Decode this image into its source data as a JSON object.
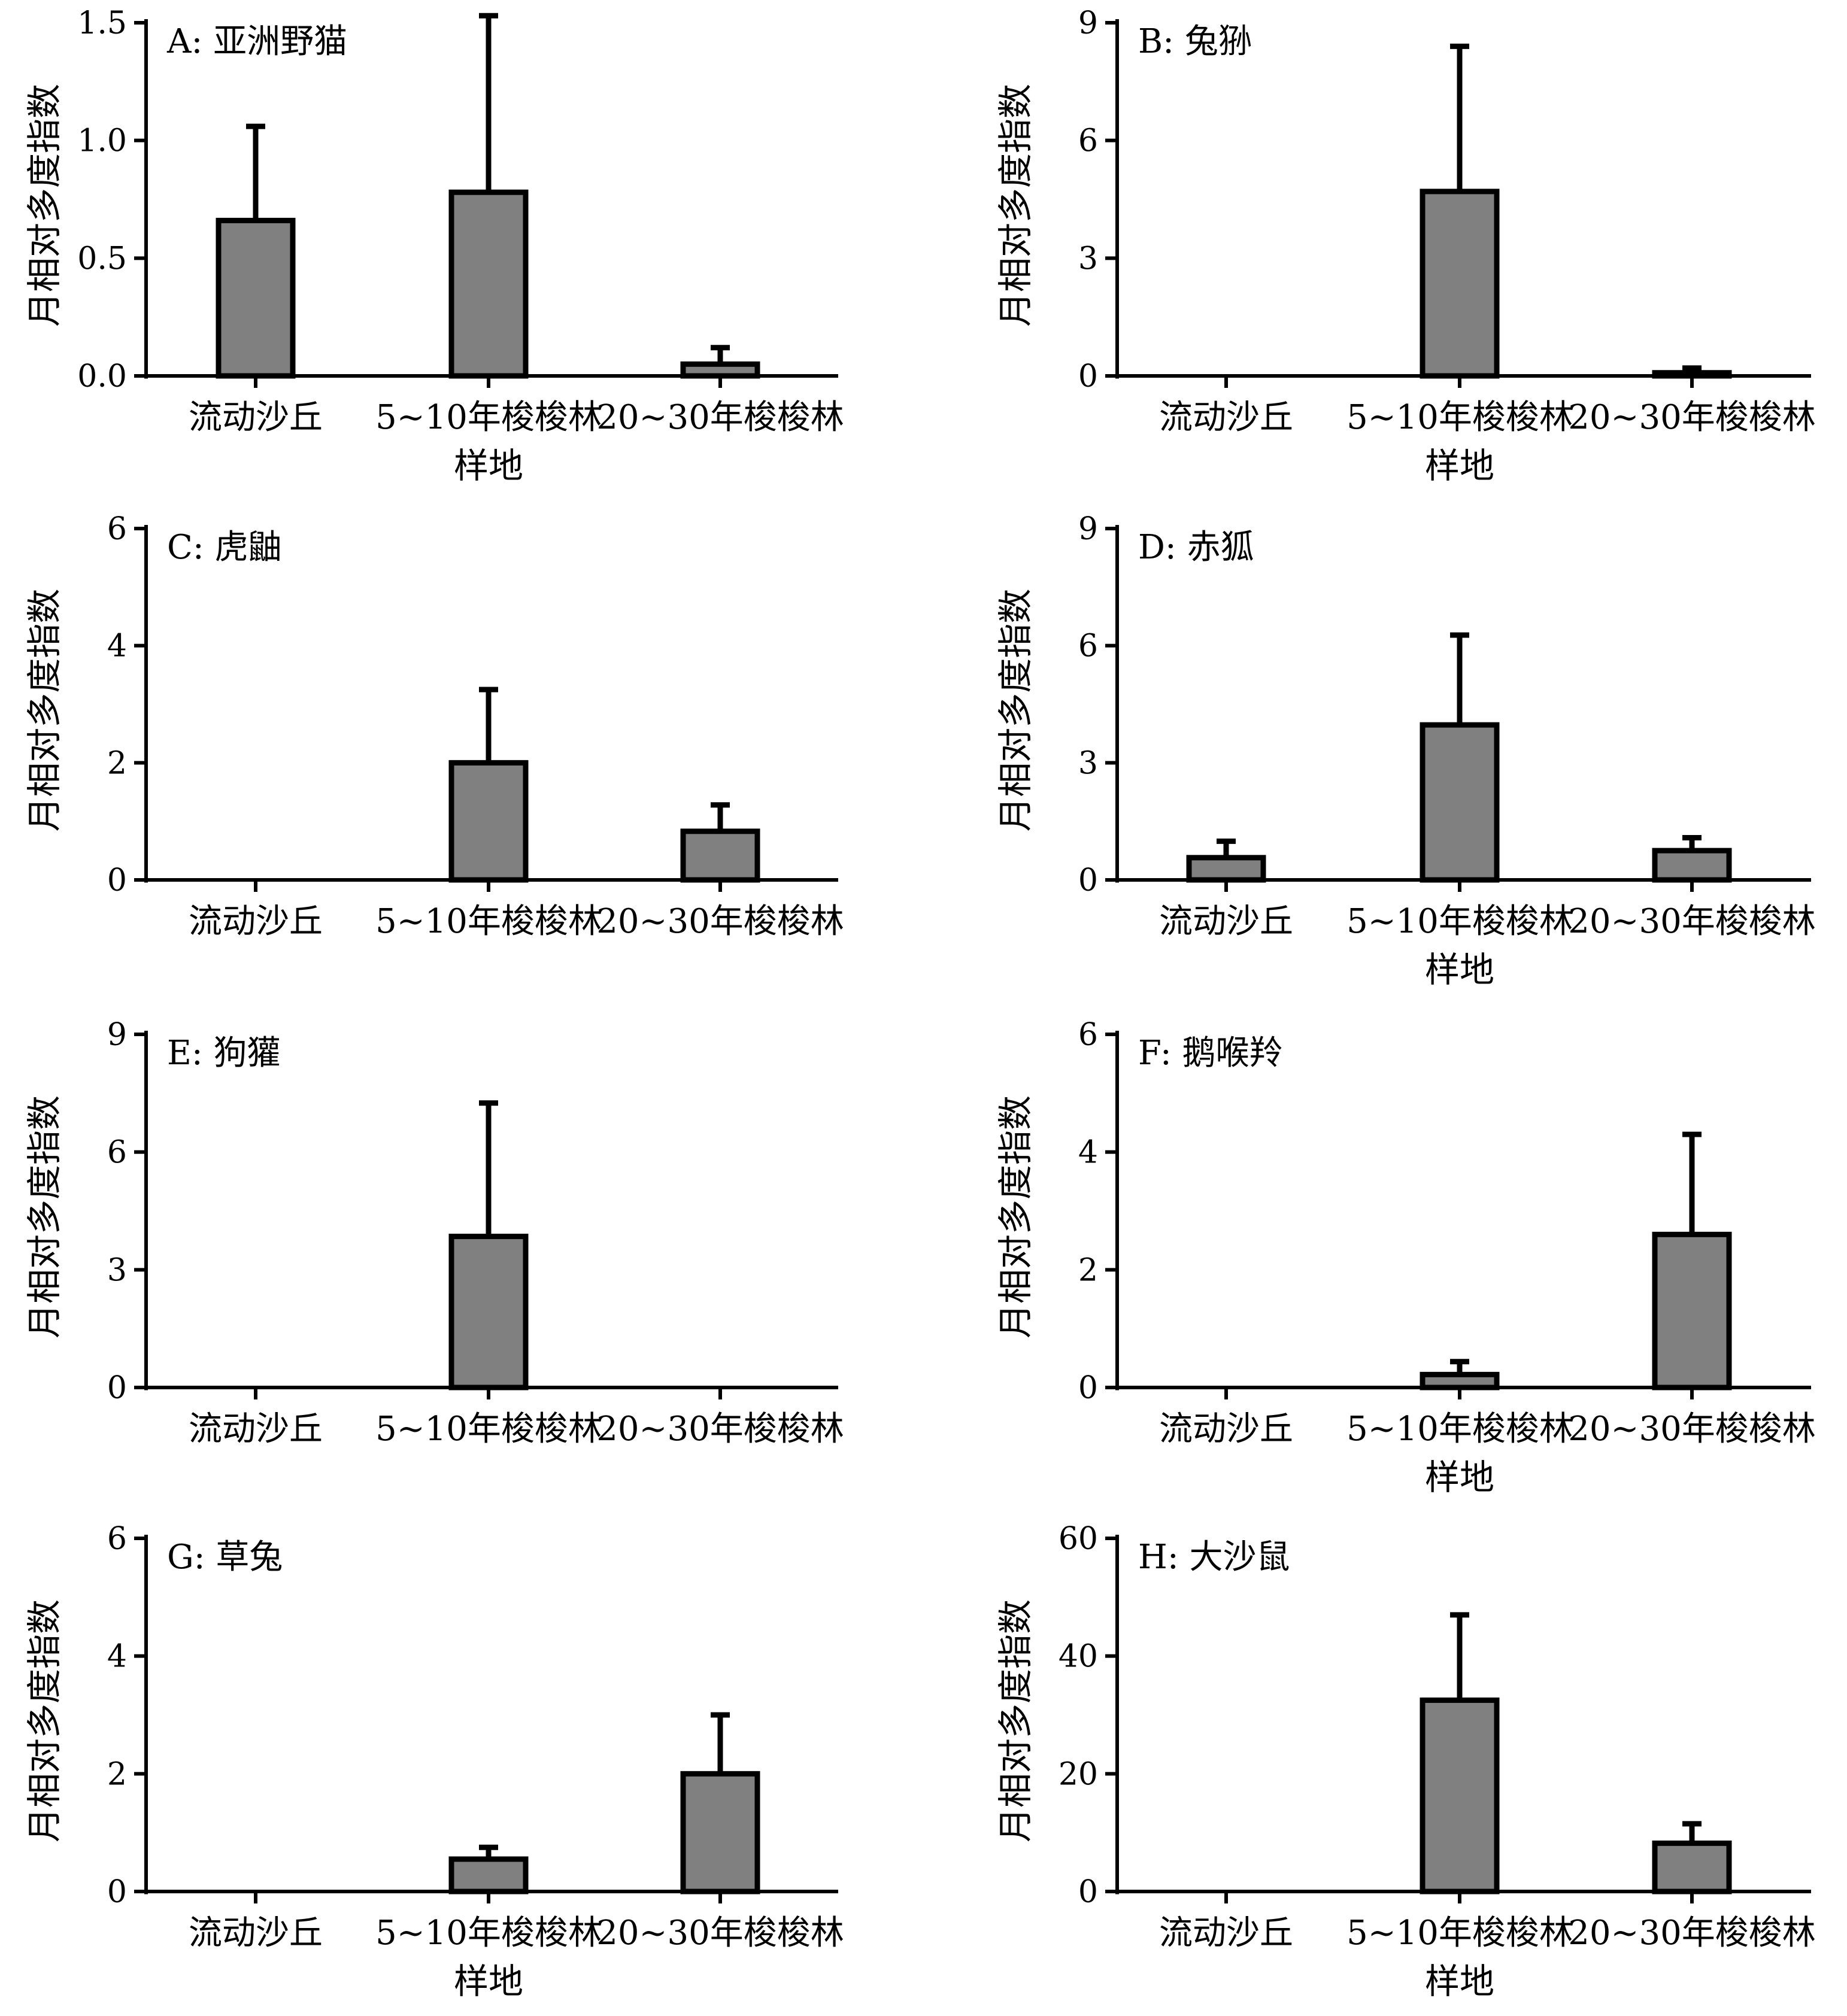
{
  "colors": {
    "bar_fill": "#808080",
    "bar_stroke": "#000000",
    "axis": "#000000",
    "background": "#ffffff"
  },
  "chart_data": [
    {
      "type": "bar",
      "title": "A: 亚洲野猫",
      "categories": [
        "流动沙丘",
        "5~10年梭梭林",
        "20~30年梭梭林"
      ],
      "values": [
        0.66,
        0.78,
        0.05
      ],
      "errors": [
        0.4,
        0.75,
        0.07
      ],
      "ylim": [
        0,
        1.5
      ],
      "yticks": [
        "0.0",
        "0.5",
        "1.0",
        "1.5"
      ],
      "ylabel": "月相对多度指数",
      "xlabel": "样地"
    },
    {
      "type": "bar",
      "title": "B: 兔狲",
      "categories": [
        "流动沙丘",
        "5~10年梭梭林",
        "20~30年梭梭林"
      ],
      "values": [
        0,
        4.7,
        0.08
      ],
      "errors": [
        0,
        3.7,
        0.12
      ],
      "ylim": [
        0,
        9
      ],
      "yticks": [
        "0",
        "3",
        "6",
        "9"
      ],
      "ylabel": "月相对多度指数",
      "xlabel": "样地"
    },
    {
      "type": "bar",
      "title": "C: 虎鼬",
      "categories": [
        "流动沙丘",
        "5~10年梭梭林",
        "20~30年梭梭林"
      ],
      "values": [
        0,
        2.0,
        0.83
      ],
      "errors": [
        0,
        1.25,
        0.45
      ],
      "ylim": [
        0,
        6
      ],
      "yticks": [
        "0",
        "2",
        "4",
        "6"
      ],
      "ylabel": "月相对多度指数",
      "xlabel": ""
    },
    {
      "type": "bar",
      "title": "D: 赤狐",
      "categories": [
        "流动沙丘",
        "5~10年梭梭林",
        "20~30年梭梭林"
      ],
      "values": [
        0.57,
        3.97,
        0.75
      ],
      "errors": [
        0.42,
        2.3,
        0.33
      ],
      "ylim": [
        0,
        9
      ],
      "yticks": [
        "0",
        "3",
        "6",
        "9"
      ],
      "ylabel": "月相对多度指数",
      "xlabel": "样地"
    },
    {
      "type": "bar",
      "title": "E: 狗獾",
      "categories": [
        "流动沙丘",
        "5~10年梭梭林",
        "20~30年梭梭林"
      ],
      "values": [
        0,
        3.85,
        0
      ],
      "errors": [
        0,
        3.4,
        0
      ],
      "ylim": [
        0,
        9
      ],
      "yticks": [
        "0",
        "3",
        "6",
        "9"
      ],
      "ylabel": "月相对多度指数",
      "xlabel": ""
    },
    {
      "type": "bar",
      "title": "F: 鹅喉羚",
      "categories": [
        "流动沙丘",
        "5~10年梭梭林",
        "20~30年梭梭林"
      ],
      "values": [
        0,
        0.22,
        2.6
      ],
      "errors": [
        0,
        0.22,
        1.7
      ],
      "ylim": [
        0,
        6
      ],
      "yticks": [
        "0",
        "2",
        "4",
        "6"
      ],
      "ylabel": "月相对多度指数",
      "xlabel": "样地"
    },
    {
      "type": "bar",
      "title": "G: 草兔",
      "categories": [
        "流动沙丘",
        "5~10年梭梭林",
        "20~30年梭梭林"
      ],
      "values": [
        0,
        0.55,
        2.0
      ],
      "errors": [
        0,
        0.2,
        1.0
      ],
      "ylim": [
        0,
        6
      ],
      "yticks": [
        "0",
        "2",
        "4",
        "6"
      ],
      "ylabel": "月相对多度指数",
      "xlabel": "样地"
    },
    {
      "type": "bar",
      "title": "H: 大沙鼠",
      "categories": [
        "流动沙丘",
        "5~10年梭梭林",
        "20~30年梭梭林"
      ],
      "values": [
        0,
        32.5,
        8.2
      ],
      "errors": [
        0,
        14.5,
        3.3
      ],
      "ylim": [
        0,
        60
      ],
      "yticks": [
        "0",
        "20",
        "40",
        "60"
      ],
      "ylabel": "月相对多度指数",
      "xlabel": "样地"
    }
  ]
}
